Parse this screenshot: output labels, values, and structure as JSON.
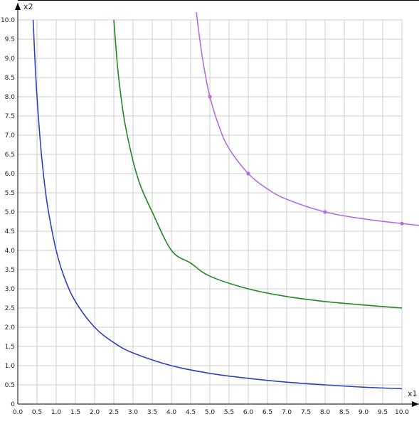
{
  "chart_data": {
    "type": "line",
    "title": "",
    "xlabel": "x1",
    "ylabel": "x2",
    "xlim": [
      0,
      10
    ],
    "ylim": [
      0,
      10
    ],
    "grid": true,
    "x_ticks": [
      "0.0",
      "0.5",
      "1.0",
      "1.5",
      "2.0",
      "2.5",
      "3.0",
      "3.5",
      "4.0",
      "4.5",
      "5.0",
      "5.5",
      "6.0",
      "6.5",
      "7.0",
      "7.5",
      "8.0",
      "8.5",
      "9.0",
      "9.5",
      "10.0"
    ],
    "y_ticks": [
      "0",
      "0.5",
      "1.0",
      "1.5",
      "2.0",
      "2.5",
      "3.0",
      "3.5",
      "4.0",
      "4.5",
      "5.0",
      "5.5",
      "6.0",
      "6.5",
      "7.0",
      "7.5",
      "8.0",
      "8.5",
      "9.0",
      "9.5",
      "10.0"
    ],
    "series": [
      {
        "color": "#2f3fc4",
        "x": [
          0.4,
          0.45,
          0.5,
          0.6,
          0.7,
          0.8,
          1.0,
          1.2,
          1.5,
          2.0,
          2.5,
          3.0,
          4.0,
          5.0,
          6.0,
          7.0,
          8.0,
          9.0,
          10.0
        ],
        "y": [
          10.0,
          8.89,
          8.0,
          6.67,
          5.71,
          5.0,
          4.0,
          3.33,
          2.67,
          2.0,
          1.6,
          1.33,
          1.0,
          0.8,
          0.67,
          0.57,
          0.5,
          0.44,
          0.4
        ]
      },
      {
        "color": "#1f8a1f",
        "x": [
          2.5,
          2.6,
          2.7,
          2.8,
          3.0,
          3.2,
          3.5,
          4.0,
          4.5,
          5.0,
          6.0,
          7.0,
          8.0,
          9.0,
          10.0
        ],
        "y": [
          10.0,
          8.75,
          7.9,
          7.25,
          6.33,
          5.67,
          5.0,
          4.0,
          3.67,
          3.33,
          3.0,
          2.8,
          2.67,
          2.58,
          2.5
        ]
      },
      {
        "color": "#b56ee0",
        "x": [
          4.65,
          4.75,
          4.85,
          5.0,
          5.25,
          5.5,
          6.0,
          6.5,
          7.0,
          8.0,
          9.0,
          10.0,
          10.45
        ],
        "y": [
          10.2,
          9.4,
          8.75,
          8.0,
          7.2,
          6.65,
          6.0,
          5.6,
          5.33,
          5.0,
          4.82,
          4.7,
          4.65
        ],
        "markers": [
          [
            5.0,
            8.0
          ],
          [
            6.0,
            6.0
          ],
          [
            8.0,
            5.0
          ],
          [
            10.0,
            4.7
          ]
        ]
      }
    ]
  }
}
